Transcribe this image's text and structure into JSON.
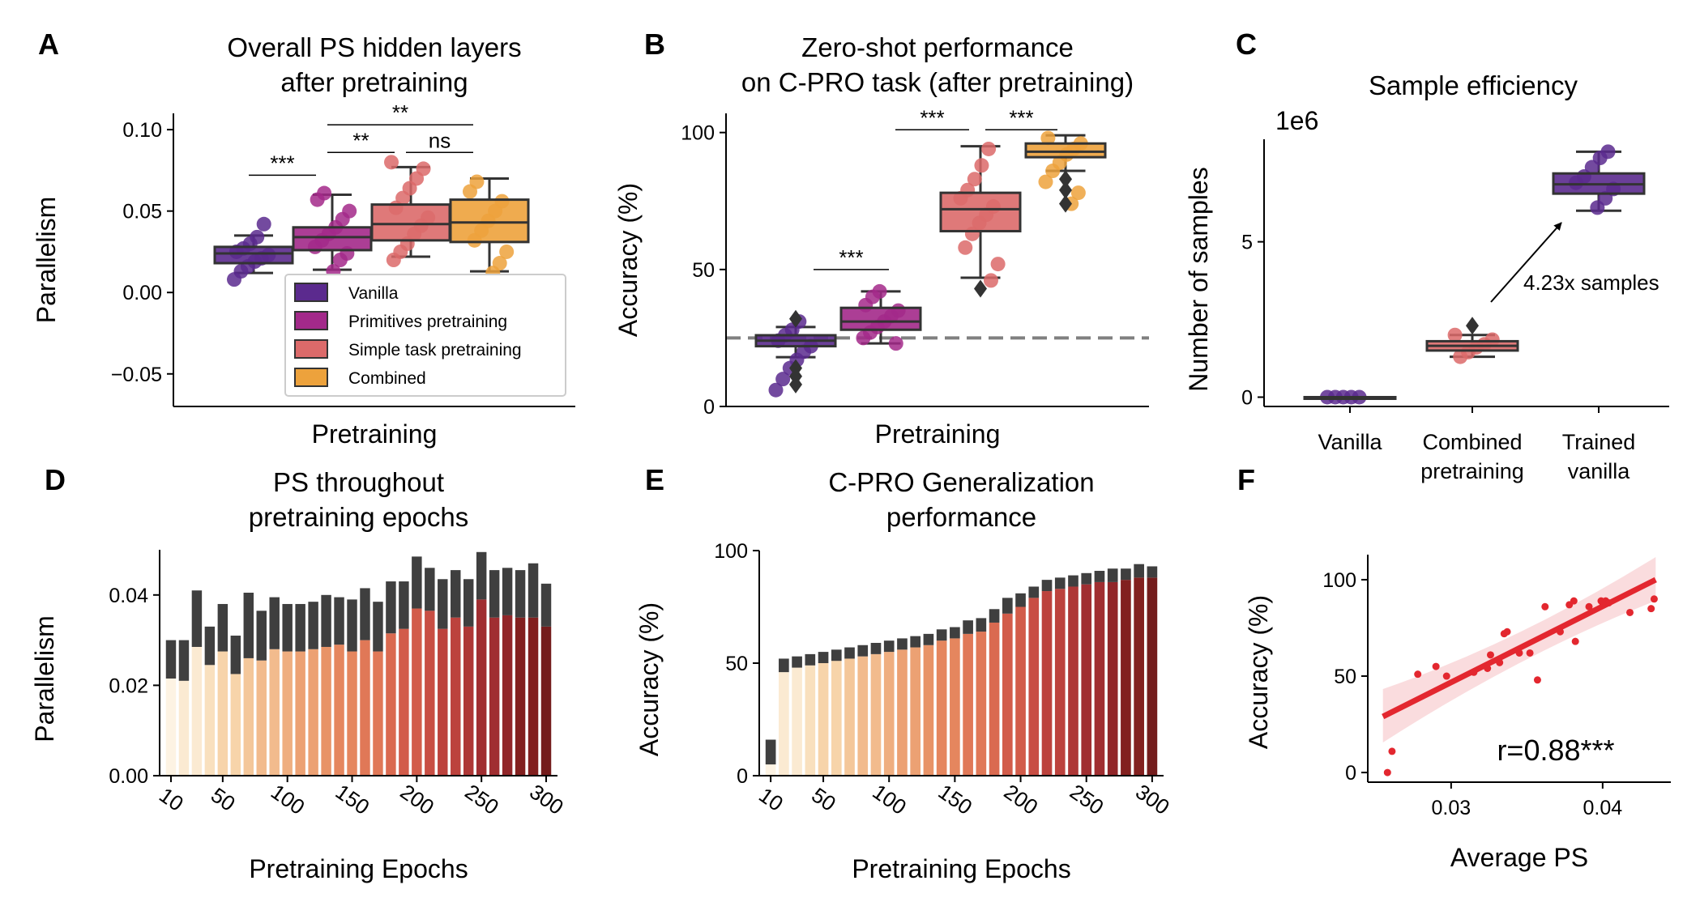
{
  "colors": {
    "Vanilla": "#5b2a8e",
    "Primitives pretraining": "#a3298a",
    "Simple task pretraining": "#dc6a6a",
    "Combined": "#eda23c",
    "box_edge": "#333333",
    "ref_line": "#808080",
    "fit_line": "#e3272f",
    "scatter": "#e3272f",
    "bar_error": "#3f3f3f"
  },
  "chart_data": [
    {
      "panel": "A",
      "type": "box",
      "title": "Overall PS hidden layers\nafter pretraining",
      "xlabel": "Pretraining",
      "ylabel": "Parallelism",
      "ylim": [
        -0.07,
        0.11
      ],
      "yticks": [
        -0.05,
        0.0,
        0.05,
        0.1
      ],
      "ytick_labels": [
        "−0.05",
        "0.00",
        "0.05",
        "0.10"
      ],
      "legend": {
        "position": "lower-right",
        "entries": [
          "Vanilla",
          "Primitives pretraining",
          "Simple task pretraining",
          "Combined"
        ]
      },
      "series": [
        {
          "name": "Vanilla",
          "whisker_low": 0.012,
          "q1": 0.018,
          "median": 0.024,
          "q3": 0.028,
          "whisker_high": 0.035,
          "points": [
            0.008,
            0.013,
            0.016,
            0.019,
            0.021,
            0.023,
            0.025,
            0.027,
            0.03,
            0.034,
            0.042
          ]
        },
        {
          "name": "Primitives pretraining",
          "whisker_low": 0.014,
          "q1": 0.026,
          "median": 0.034,
          "q3": 0.04,
          "whisker_high": 0.06,
          "points": [
            0.013,
            0.02,
            0.024,
            0.028,
            0.032,
            0.036,
            0.04,
            0.045,
            0.05,
            0.057,
            0.061
          ]
        },
        {
          "name": "Simple task pretraining",
          "whisker_low": 0.022,
          "q1": 0.032,
          "median": 0.042,
          "q3": 0.054,
          "whisker_high": 0.077,
          "points": [
            0.02,
            0.025,
            0.03,
            0.036,
            0.041,
            0.046,
            0.052,
            0.058,
            0.064,
            0.07,
            0.076,
            0.08
          ]
        },
        {
          "name": "Combined",
          "whisker_low": 0.013,
          "q1": 0.031,
          "median": 0.043,
          "q3": 0.057,
          "whisker_high": 0.07,
          "points": [
            0.012,
            0.018,
            0.025,
            0.032,
            0.038,
            0.044,
            0.05,
            0.056,
            0.062,
            0.068
          ]
        }
      ],
      "annotations": [
        {
          "text": "***",
          "from": 0,
          "to": 1,
          "y": 0.072
        },
        {
          "text": "**",
          "from": 1,
          "to": 2,
          "y": 0.086
        },
        {
          "text": "ns",
          "from": 2,
          "to": 3,
          "y": 0.086
        },
        {
          "text": "**",
          "from": 1,
          "to": 3,
          "y": 0.103
        }
      ]
    },
    {
      "panel": "B",
      "type": "box",
      "title": "Zero-shot performance\non C-PRO task (after pretraining)",
      "xlabel": "Pretraining",
      "ylabel": "Accuracy (%)",
      "ylim": [
        0,
        107
      ],
      "yticks": [
        0,
        50,
        100
      ],
      "ytick_labels": [
        "0",
        "50",
        "100"
      ],
      "reference_line": 25,
      "series": [
        {
          "name": "Vanilla",
          "whisker_low": 18,
          "q1": 22,
          "median": 24,
          "q3": 26,
          "whisker_high": 29,
          "outliers": [
            8,
            11,
            14,
            32
          ],
          "points": [
            6,
            10,
            14,
            17,
            20,
            22,
            24,
            26,
            28,
            31
          ]
        },
        {
          "name": "Primitives pretraining",
          "whisker_low": 23,
          "q1": 28,
          "median": 31,
          "q3": 36,
          "whisker_high": 42,
          "points": [
            23,
            25,
            27,
            29,
            31,
            33,
            35,
            37,
            40,
            42
          ]
        },
        {
          "name": "Simple task pretraining",
          "whisker_low": 47,
          "q1": 64,
          "median": 72,
          "q3": 78,
          "whisker_high": 95,
          "outliers": [
            43
          ],
          "points": [
            46,
            52,
            58,
            63,
            67,
            70,
            73,
            76,
            79,
            83,
            88,
            94
          ]
        },
        {
          "name": "Combined",
          "whisker_low": 86,
          "q1": 91,
          "median": 93,
          "q3": 96,
          "whisker_high": 99,
          "outliers": [
            83,
            79,
            74
          ],
          "points": [
            74,
            78,
            82,
            86,
            89,
            92,
            94,
            96,
            98
          ]
        }
      ],
      "annotations": [
        {
          "text": "***",
          "from": 0.8,
          "to": 1.8,
          "y": 50
        },
        {
          "text": "***",
          "from": 1.8,
          "to": 2.8,
          "y": 101
        },
        {
          "text": "***",
          "from": 2.8,
          "to": 3.8,
          "y": 101
        }
      ]
    },
    {
      "panel": "C",
      "type": "box",
      "title": "Sample efficiency",
      "xlabel": "",
      "ylabel": "Number of samples",
      "offset_label": "1e6",
      "categories": [
        "Vanilla",
        "Combined\npretraining",
        "Trained\nvanilla"
      ],
      "ylim": [
        -0.3,
        8.3
      ],
      "yticks": [
        0,
        5
      ],
      "ytick_labels": [
        "0",
        "5"
      ],
      "series": [
        {
          "name": "Vanilla",
          "whisker_low": 0.0,
          "q1": 0.0,
          "median": 0.0,
          "q3": 0.0,
          "whisker_high": 0.0,
          "points": [
            0.0,
            0.0,
            0.0,
            0.0,
            0.0
          ]
        },
        {
          "name": "Combined",
          "whisker_low": 1.3,
          "q1": 1.5,
          "median": 1.65,
          "q3": 1.8,
          "whisker_high": 2.0,
          "outliers": [
            2.3
          ],
          "points": [
            1.3,
            1.45,
            1.6,
            1.7,
            1.85,
            2.0
          ]
        },
        {
          "name": "Vanilla",
          "whisker_low": 6.0,
          "q1": 6.55,
          "median": 6.85,
          "q3": 7.2,
          "whisker_high": 7.9,
          "points": [
            6.1,
            6.4,
            6.7,
            6.9,
            7.1,
            7.4,
            7.7,
            7.9
          ]
        }
      ],
      "annotation": {
        "text": "4.23x samples"
      }
    },
    {
      "panel": "D",
      "type": "bar",
      "title": "PS throughout\npretraining epochs",
      "xlabel": "Pretraining Epochs",
      "ylabel": "Parallelism",
      "ylim": [
        0,
        0.05
      ],
      "yticks": [
        0,
        0.02,
        0.04
      ],
      "ytick_labels": [
        "0.00",
        "0.02",
        "0.04"
      ],
      "x": [
        10,
        20,
        30,
        40,
        50,
        60,
        70,
        80,
        90,
        100,
        110,
        120,
        130,
        140,
        150,
        160,
        170,
        180,
        190,
        200,
        210,
        220,
        230,
        240,
        250,
        260,
        270,
        280,
        290,
        300
      ],
      "xtick_labels": [
        "10",
        "50",
        "100",
        "150",
        "200",
        "250",
        "300"
      ],
      "values": [
        0.0215,
        0.021,
        0.0285,
        0.0245,
        0.0275,
        0.0225,
        0.026,
        0.0255,
        0.028,
        0.0275,
        0.0275,
        0.028,
        0.0285,
        0.029,
        0.0275,
        0.03,
        0.0275,
        0.0315,
        0.0325,
        0.037,
        0.0365,
        0.0325,
        0.035,
        0.033,
        0.039,
        0.035,
        0.0355,
        0.035,
        0.035,
        0.033
      ],
      "errors": [
        0.0085,
        0.009,
        0.0125,
        0.0085,
        0.0105,
        0.0085,
        0.0145,
        0.011,
        0.0115,
        0.0105,
        0.0105,
        0.0105,
        0.0115,
        0.0105,
        0.0115,
        0.0115,
        0.011,
        0.0115,
        0.0105,
        0.0115,
        0.0095,
        0.011,
        0.0105,
        0.0105,
        0.0105,
        0.0105,
        0.0105,
        0.0105,
        0.012,
        0.0095
      ]
    },
    {
      "panel": "E",
      "type": "bar",
      "title": "C-PRO Generalization\nperformance",
      "xlabel": "Pretraining Epochs",
      "ylabel": "Accuracy (%)",
      "ylim": [
        0,
        100
      ],
      "yticks": [
        0,
        50,
        100
      ],
      "ytick_labels": [
        "0",
        "50",
        "100"
      ],
      "x": [
        10,
        20,
        30,
        40,
        50,
        60,
        70,
        80,
        90,
        100,
        110,
        120,
        130,
        140,
        150,
        160,
        170,
        180,
        190,
        200,
        210,
        220,
        230,
        240,
        250,
        260,
        270,
        280,
        290,
        300
      ],
      "xtick_labels": [
        "10",
        "50",
        "100",
        "150",
        "200",
        "250",
        "300"
      ],
      "values": [
        5,
        46,
        48,
        49,
        50,
        51,
        52,
        53,
        54,
        55,
        56,
        57,
        58,
        60,
        61,
        63,
        64,
        68,
        72,
        75,
        79,
        82,
        83,
        84,
        85,
        86,
        86,
        87,
        88,
        88
      ],
      "errors": [
        11,
        6,
        5,
        5,
        5,
        5,
        5,
        5,
        5,
        5,
        5,
        5,
        5,
        5,
        5,
        6,
        6,
        6,
        7,
        6,
        5,
        5,
        5,
        5,
        5,
        5,
        6,
        5,
        6,
        5
      ]
    },
    {
      "panel": "F",
      "type": "scatter",
      "title": "",
      "xlabel": "Average PS",
      "ylabel": "Accuracy (%)",
      "xlim": [
        0.0245,
        0.0445
      ],
      "ylim": [
        -5,
        113
      ],
      "xticks": [
        0.03,
        0.04
      ],
      "xtick_labels": [
        "0.03",
        "0.04"
      ],
      "yticks": [
        0,
        50,
        100
      ],
      "ytick_labels": [
        "0",
        "50",
        "100"
      ],
      "points": [
        [
          0.0258,
          0
        ],
        [
          0.0261,
          11
        ],
        [
          0.0278,
          51
        ],
        [
          0.029,
          55
        ],
        [
          0.0297,
          50
        ],
        [
          0.0315,
          52
        ],
        [
          0.0324,
          54
        ],
        [
          0.0326,
          61
        ],
        [
          0.0332,
          57
        ],
        [
          0.0335,
          72
        ],
        [
          0.0337,
          73
        ],
        [
          0.0345,
          62
        ],
        [
          0.0352,
          62
        ],
        [
          0.0357,
          48
        ],
        [
          0.0362,
          86
        ],
        [
          0.0372,
          73
        ],
        [
          0.0378,
          87
        ],
        [
          0.0381,
          89
        ],
        [
          0.0382,
          68
        ],
        [
          0.0391,
          86
        ],
        [
          0.0399,
          89
        ],
        [
          0.0402,
          89
        ],
        [
          0.0404,
          88
        ],
        [
          0.0418,
          83
        ],
        [
          0.0432,
          85
        ],
        [
          0.0434,
          90
        ],
        [
          0.04,
          88
        ]
      ],
      "fit": {
        "x0": 0.0255,
        "y0": 29,
        "x1": 0.0435,
        "y1": 100
      },
      "annotation": "r=0.88***"
    }
  ],
  "panel_letters": [
    "A",
    "B",
    "C",
    "D",
    "E",
    "F"
  ]
}
